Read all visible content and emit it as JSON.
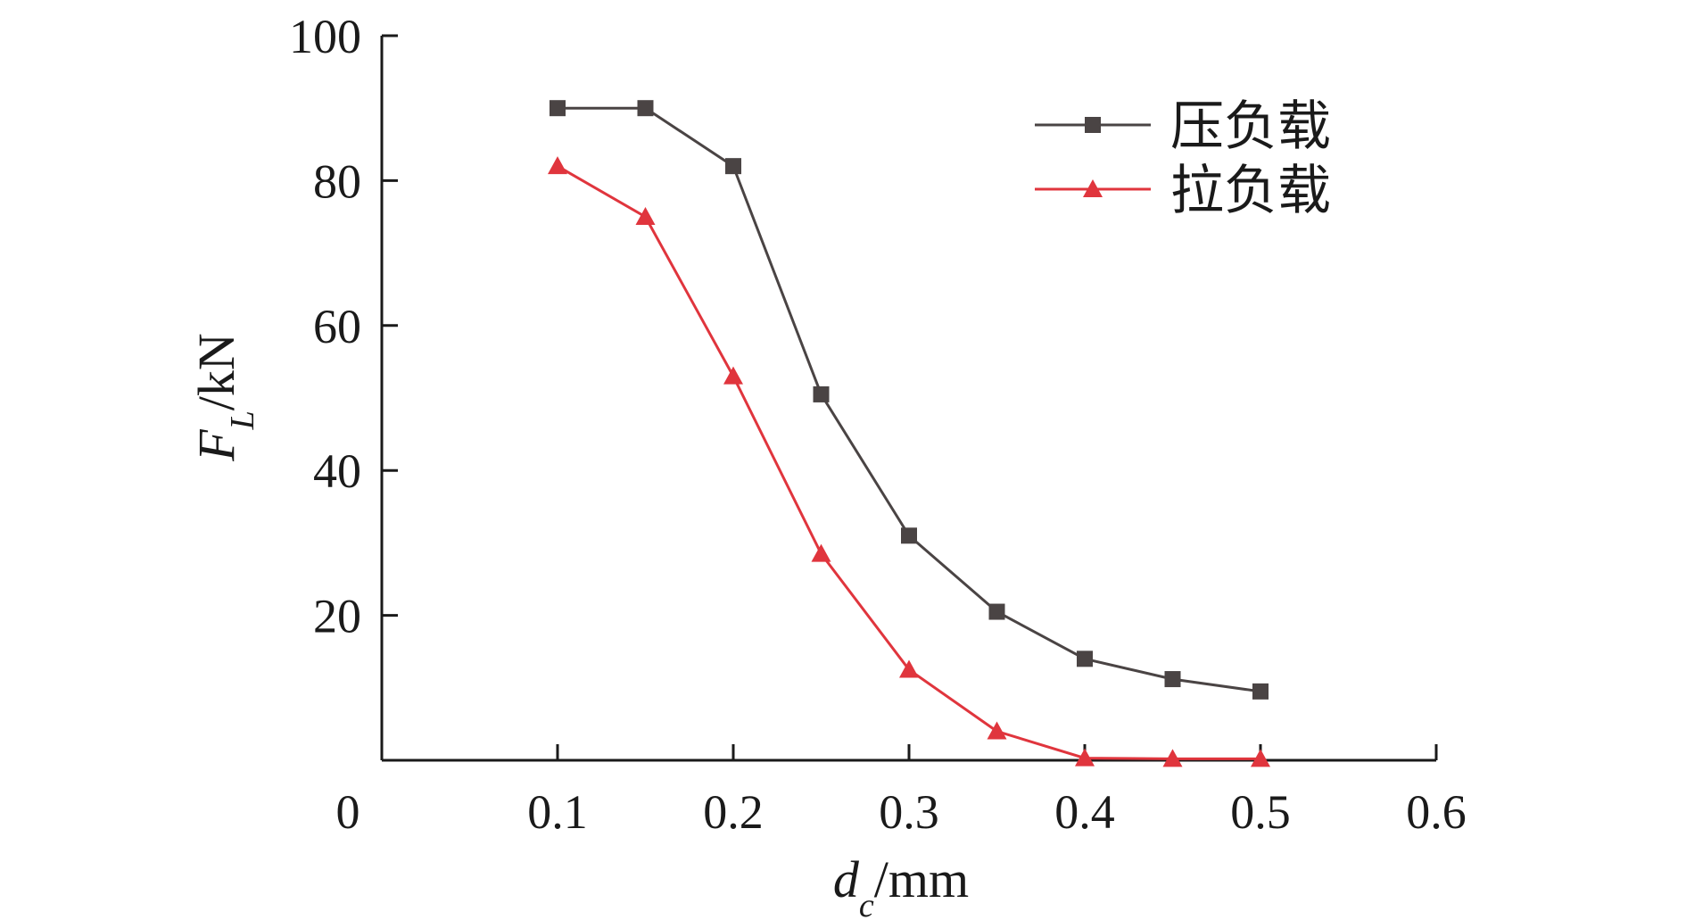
{
  "chart_data": {
    "type": "line",
    "title": "",
    "xlabel": {
      "var": "d",
      "sub": "c",
      "unit": "/mm"
    },
    "ylabel": {
      "var": "F",
      "sub": "L",
      "unit": "/kN"
    },
    "xlim": [
      0,
      0.6
    ],
    "ylim": [
      0,
      100
    ],
    "x_ticks": [
      "0",
      "0.1",
      "0.2",
      "0.3",
      "0.4",
      "0.5",
      "0.6"
    ],
    "y_ticks": [
      "20",
      "40",
      "60",
      "80",
      "100"
    ],
    "x_tick_values": [
      0,
      0.1,
      0.2,
      0.3,
      0.4,
      0.5,
      0.6
    ],
    "y_tick_values": [
      20,
      40,
      60,
      80,
      100
    ],
    "grid": false,
    "legend_position": "top-right",
    "x": [
      0.1,
      0.15,
      0.2,
      0.25,
      0.3,
      0.35,
      0.4,
      0.45,
      0.5
    ],
    "series": [
      {
        "name": "压负载",
        "color": "#4a4444",
        "marker": "square",
        "values": [
          90,
          90,
          82,
          50.5,
          31,
          20.5,
          14,
          11.2,
          9.5
        ]
      },
      {
        "name": "拉负载",
        "color": "#e0353d",
        "marker": "triangle",
        "values": [
          82,
          75,
          53,
          28.5,
          12.5,
          4,
          0.3,
          0.2,
          0.2
        ]
      }
    ]
  }
}
